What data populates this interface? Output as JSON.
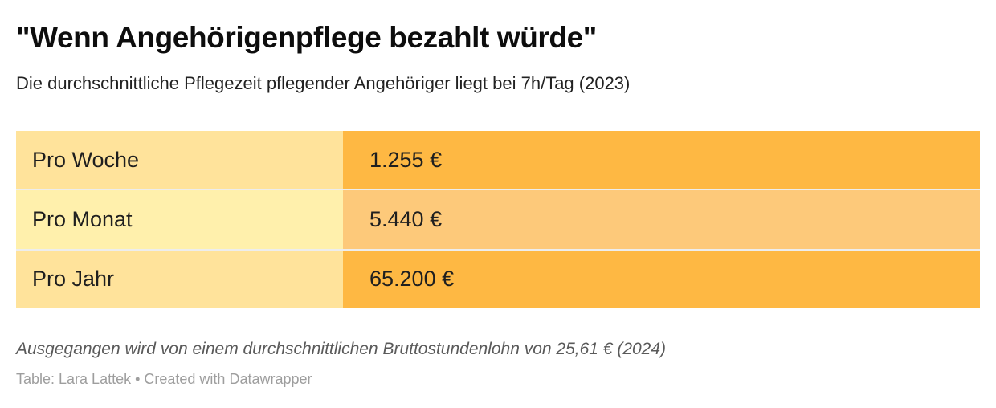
{
  "header": {
    "title": "\"Wenn Angehörigenpflege bezahlt würde\"",
    "subtitle": "Die durchschnittliche Pflegezeit pflegender Angehöriger liegt bei 7h/Tag (2023)"
  },
  "chart_data": {
    "type": "table",
    "title": "\"Wenn Angehörigenpflege bezahlt würde\"",
    "subtitle": "Die durchschnittliche Pflegezeit pflegender Angehöriger liegt bei 7h/Tag (2023)",
    "unit": "€",
    "rows": [
      {
        "label": "Pro Woche",
        "value": 1255,
        "value_text": "1.255 €",
        "label_bg": "#FFE39B",
        "value_bg": "#FEB843"
      },
      {
        "label": "Pro Monat",
        "value": 5440,
        "value_text": "5.440 €",
        "label_bg": "#FFF0AC",
        "value_bg": "#FDC97A"
      },
      {
        "label": "Pro Jahr",
        "value": 65200,
        "value_text": "65.200 €",
        "label_bg": "#FFE39B",
        "value_bg": "#FEB843"
      }
    ],
    "note": "Ausgegangen wird von einem durchschnittlichen Bruttostundenlohn von 25,61 € (2024)",
    "credit": "Table: Lara Lattek • Created with Datawrapper"
  },
  "footer": {
    "note": "Ausgegangen wird von einem durchschnittlichen Bruttostundenlohn von 25,61 € (2024)",
    "credit": "Table: Lara Lattek • Created with Datawrapper"
  },
  "colors": {
    "background": "#ffffff",
    "title_text": "#0d0d0d",
    "subtitle_text": "#222222",
    "table_text": "#1f1f1f",
    "note_text": "#5a5a5a",
    "credit_text": "#9e9e9e",
    "cell_yellow": "#FFE39B",
    "cell_yellow_light": "#FFF0AC",
    "cell_orange": "#FEB843",
    "cell_orange_light": "#FDC97A"
  }
}
